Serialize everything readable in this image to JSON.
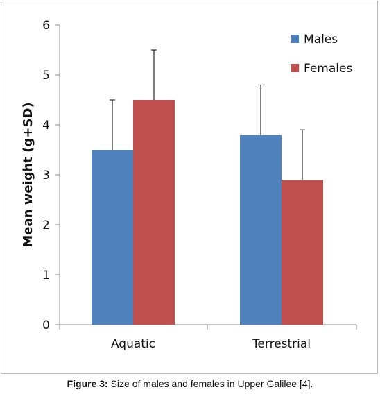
{
  "chart_data": {
    "type": "bar",
    "categories": [
      "Aquatic",
      "Terrestrial"
    ],
    "series": [
      {
        "name": "Males",
        "values": [
          3.5,
          3.8
        ],
        "error_plus": [
          1.0,
          1.0
        ],
        "color": "#4f81bd"
      },
      {
        "name": "Females",
        "values": [
          4.5,
          2.9
        ],
        "error_plus": [
          1.0,
          1.0
        ],
        "color": "#c0504d"
      }
    ],
    "ylabel": "Mean weight (g+SD)",
    "xlabel": "",
    "ylim": [
      0,
      6
    ],
    "yticks": [
      "0",
      "1",
      "2",
      "3",
      "4",
      "5",
      "6"
    ],
    "grid": false,
    "legend_position": "top-right"
  },
  "caption": {
    "label": "Figure 3:",
    "text": " Size of males and females in Upper Galilee [4]."
  }
}
